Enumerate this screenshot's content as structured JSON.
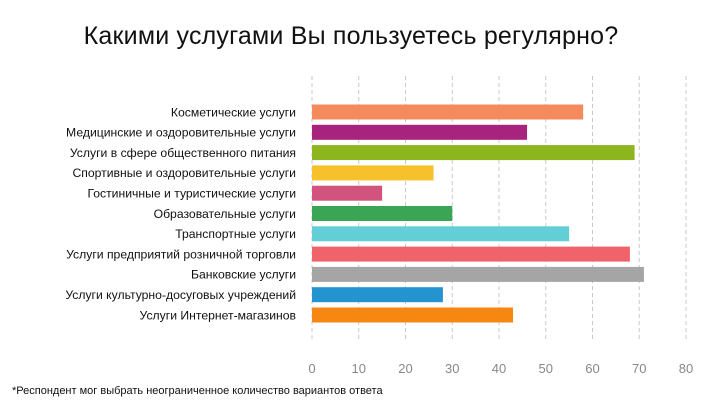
{
  "chart_data": {
    "type": "bar",
    "orientation": "horizontal",
    "title": "Какими услугами Вы пользуетесь регулярно?",
    "xlabel": "",
    "ylabel": "",
    "xlim": [
      0,
      80
    ],
    "ticks": [
      0,
      10,
      20,
      30,
      40,
      50,
      60,
      70,
      80
    ],
    "grid": "vertical dashed",
    "legend": "none",
    "categories": [
      "Косметические услуги",
      "Медицинские и оздоровительные услуги",
      "Услуги в сфере общественного питания",
      "Спортивные и оздоровительные услуги",
      "Гостиничные и туристические услуги",
      "Образовательные услуги",
      "Транспортные услуги",
      "Услуги предприятий розничной торговли",
      "Банковские услуги",
      "Услуги культурно-досуговых учреждений",
      "Услуги Интернет-магазинов"
    ],
    "values": [
      58,
      46,
      69,
      26,
      15,
      30,
      55,
      68,
      71,
      28,
      43
    ],
    "colors": [
      "#f58b5c",
      "#a8237e",
      "#8db51e",
      "#f6c12b",
      "#d2547e",
      "#3aa655",
      "#62cfd6",
      "#f0636a",
      "#a5a5a5",
      "#2394cf",
      "#f68712"
    ]
  },
  "footnote": "*Респондент мог выбрать неограниченное количество вариантов ответа"
}
